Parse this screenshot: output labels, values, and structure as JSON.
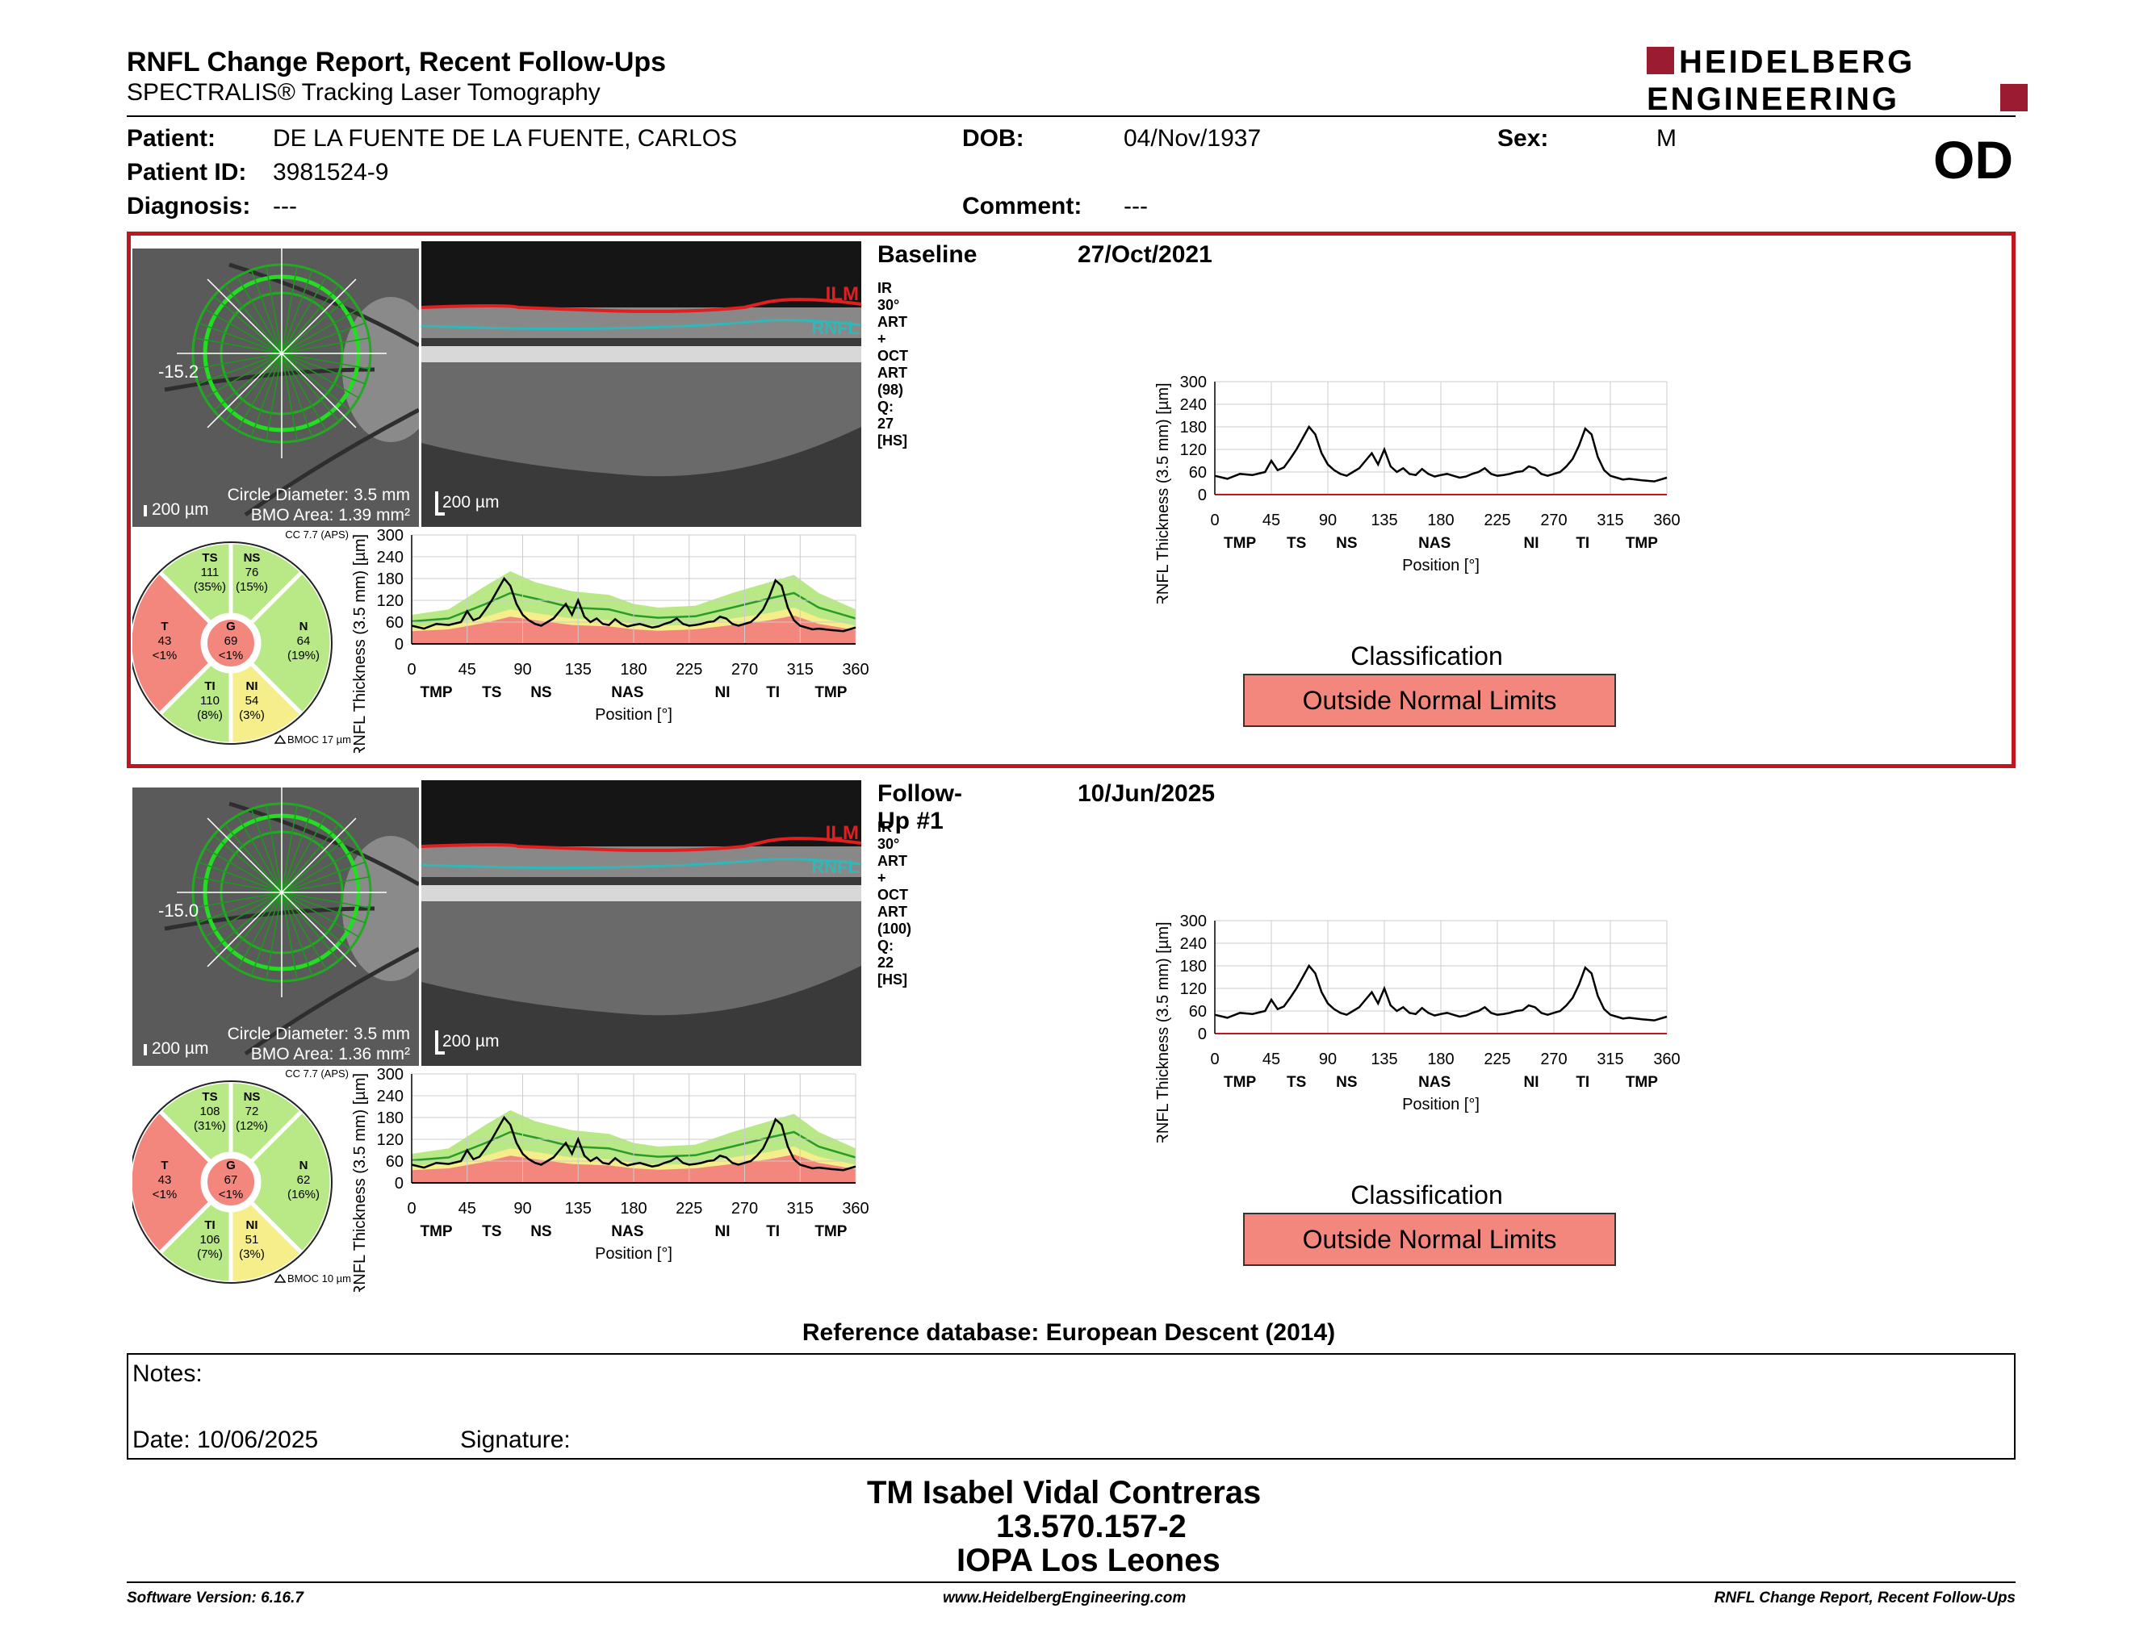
{
  "header": {
    "title": "RNFL Change Report, Recent Follow-Ups",
    "subtitle": "SPECTRALIS® Tracking Laser Tomography",
    "logo_line1": "HEIDELBERG",
    "logo_line2": "ENGINEERING",
    "eye": "OD"
  },
  "patient": {
    "patient_label": "Patient:",
    "patient_value": "DE LA FUENTE DE LA FUENTE, CARLOS",
    "dob_label": "DOB:",
    "dob_value": "04/Nov/1937",
    "sex_label": "Sex:",
    "sex_value": "M",
    "id_label": "Patient ID:",
    "id_value": "3981524-9",
    "diagnosis_label": "Diagnosis:",
    "diagnosis_value": "---",
    "comment_label": "Comment:",
    "comment_value": "---"
  },
  "exams": [
    {
      "label": "Baseline",
      "date": "27/Oct/2021",
      "scan_info": "IR 30° ART + OCT ART (98) Q: 27 [HS]",
      "fundus_angle": "-15.2",
      "fundus_scale": "200 µm",
      "circle_diameter": "Circle Diameter: 3.5 mm",
      "bmo_area": "BMO Area: 1.39 mm²",
      "oct_scale": "200 µm",
      "ilm": "ILM",
      "rnfl": "RNFL",
      "cc_label": "CC 7.7 (APS)",
      "bmoc": "BMOC 17 µm",
      "sectors": {
        "ts": {
          "name": "TS",
          "value": "111",
          "pct": "(35%)",
          "color": "#b8e986"
        },
        "ns": {
          "name": "NS",
          "value": "76",
          "pct": "(15%)",
          "color": "#b8e986"
        },
        "t": {
          "name": "T",
          "value": "43",
          "pct": "<1%",
          "color": "#f4877d"
        },
        "g": {
          "name": "G",
          "value": "69",
          "pct": "<1%",
          "color": "#f4877d"
        },
        "n": {
          "name": "N",
          "value": "64",
          "pct": "(19%)",
          "color": "#b8e986"
        },
        "ti": {
          "name": "TI",
          "value": "110",
          "pct": "(8%)",
          "color": "#b8e986"
        },
        "ni": {
          "name": "NI",
          "value": "54",
          "pct": "(3%)",
          "color": "#f5ee8a"
        }
      },
      "classification_label": "Classification",
      "classification": "Outside Normal Limits"
    },
    {
      "label": "Follow-Up #1",
      "date": "10/Jun/2025",
      "scan_info": "IR 30° ART + OCT ART (100) Q: 22 [HS]",
      "fundus_angle": "-15.0",
      "fundus_scale": "200 µm",
      "circle_diameter": "Circle Diameter: 3.5 mm",
      "bmo_area": "BMO Area: 1.36 mm²",
      "oct_scale": "200 µm",
      "ilm": "ILM",
      "rnfl": "RNFL",
      "cc_label": "CC 7.7 (APS)",
      "bmoc": "BMOC 10 µm",
      "sectors": {
        "ts": {
          "name": "TS",
          "value": "108",
          "pct": "(31%)",
          "color": "#b8e986"
        },
        "ns": {
          "name": "NS",
          "value": "72",
          "pct": "(12%)",
          "color": "#b8e986"
        },
        "t": {
          "name": "T",
          "value": "43",
          "pct": "<1%",
          "color": "#f4877d"
        },
        "g": {
          "name": "G",
          "value": "67",
          "pct": "<1%",
          "color": "#f4877d"
        },
        "n": {
          "name": "N",
          "value": "62",
          "pct": "(16%)",
          "color": "#b8e986"
        },
        "ti": {
          "name": "TI",
          "value": "106",
          "pct": "(7%)",
          "color": "#b8e986"
        },
        "ni": {
          "name": "NI",
          "value": "51",
          "pct": "(3%)",
          "color": "#f5ee8a"
        }
      },
      "classification_label": "Classification",
      "classification": "Outside Normal Limits"
    }
  ],
  "chart_data": [
    {
      "type": "line",
      "ylabel": "RNFL Thickness (3.5 mm) [µm]",
      "xlabel": "Position [°]",
      "xlim": [
        0,
        360
      ],
      "ylim": [
        0,
        300
      ],
      "xticks": [
        0,
        45,
        90,
        135,
        180,
        225,
        270,
        315,
        360
      ],
      "yticks": [
        0,
        60,
        120,
        180,
        240,
        300
      ],
      "sector_labels": [
        {
          "pos": 20,
          "t": "TMP"
        },
        {
          "pos": 65,
          "t": "TS"
        },
        {
          "pos": 105,
          "t": "NS"
        },
        {
          "pos": 175,
          "t": "NAS"
        },
        {
          "pos": 252,
          "t": "NI"
        },
        {
          "pos": 293,
          "t": "TI"
        },
        {
          "pos": 340,
          "t": "TMP"
        }
      ],
      "series": [
        {
          "x": [
            0,
            10,
            20,
            30,
            40,
            45,
            50,
            55,
            60,
            65,
            70,
            75,
            80,
            85,
            90,
            95,
            100,
            105,
            110,
            115,
            120,
            125,
            130,
            135,
            140,
            145,
            150,
            155,
            160,
            165,
            170,
            175,
            180,
            185,
            190,
            195,
            200,
            205,
            210,
            215,
            220,
            225,
            230,
            235,
            240,
            245,
            250,
            255,
            260,
            265,
            270,
            275,
            280,
            285,
            290,
            295,
            300,
            305,
            310,
            315,
            320,
            325,
            330,
            340,
            350,
            360
          ],
          "values": [
            50,
            42,
            55,
            52,
            60,
            90,
            65,
            72,
            95,
            120,
            150,
            180,
            160,
            110,
            80,
            65,
            55,
            50,
            60,
            70,
            90,
            110,
            80,
            120,
            75,
            60,
            70,
            55,
            52,
            68,
            55,
            48,
            52,
            55,
            50,
            45,
            48,
            55,
            60,
            70,
            55,
            50,
            52,
            55,
            60,
            62,
            75,
            70,
            55,
            50,
            55,
            60,
            75,
            95,
            130,
            175,
            160,
            100,
            65,
            50,
            45,
            40,
            42,
            38,
            35,
            45
          ]
        }
      ],
      "normal_green_upper": [
        [
          0,
          80
        ],
        [
          30,
          95
        ],
        [
          60,
          160
        ],
        [
          80,
          200
        ],
        [
          100,
          170
        ],
        [
          130,
          145
        ],
        [
          160,
          135
        ],
        [
          180,
          110
        ],
        [
          200,
          100
        ],
        [
          230,
          105
        ],
        [
          260,
          140
        ],
        [
          290,
          170
        ],
        [
          310,
          190
        ],
        [
          330,
          140
        ],
        [
          360,
          95
        ]
      ],
      "normal_yellow_upper": [
        [
          0,
          48
        ],
        [
          30,
          52
        ],
        [
          60,
          75
        ],
        [
          80,
          95
        ],
        [
          100,
          85
        ],
        [
          130,
          70
        ],
        [
          160,
          65
        ],
        [
          180,
          55
        ],
        [
          200,
          50
        ],
        [
          230,
          52
        ],
        [
          260,
          70
        ],
        [
          290,
          85
        ],
        [
          310,
          100
        ],
        [
          330,
          72
        ],
        [
          360,
          50
        ]
      ],
      "normal_red_upper": [
        [
          0,
          35
        ],
        [
          30,
          40
        ],
        [
          60,
          58
        ],
        [
          80,
          75
        ],
        [
          100,
          65
        ],
        [
          130,
          52
        ],
        [
          160,
          48
        ],
        [
          180,
          40
        ],
        [
          200,
          36
        ],
        [
          230,
          40
        ],
        [
          260,
          52
        ],
        [
          290,
          65
        ],
        [
          310,
          78
        ],
        [
          330,
          55
        ],
        [
          360,
          38
        ]
      ],
      "normal_mean": [
        [
          0,
          62
        ],
        [
          30,
          70
        ],
        [
          60,
          110
        ],
        [
          80,
          140
        ],
        [
          100,
          125
        ],
        [
          130,
          100
        ],
        [
          160,
          95
        ],
        [
          180,
          78
        ],
        [
          200,
          72
        ],
        [
          230,
          76
        ],
        [
          260,
          100
        ],
        [
          290,
          125
        ],
        [
          310,
          140
        ],
        [
          330,
          100
        ],
        [
          360,
          70
        ]
      ]
    }
  ],
  "reference_db": "Reference database: European Descent (2014)",
  "notes": {
    "notes_label": "Notes:",
    "date_label": "Date: 10/06/2025",
    "signature_label": "Signature:"
  },
  "signer": {
    "name": "TM Isabel Vidal Contreras",
    "id": "13.570.157-2",
    "org": "IOPA Los Leones"
  },
  "footer": {
    "version": "Software Version: 6.16.7",
    "url": "www.HeidelbergEngineering.com",
    "report": "RNFL Change Report, Recent Follow-Ups"
  },
  "colors": {
    "brand_red": "#c0161c",
    "outside_normal": "#f4877d",
    "within_normal": "#b8e986",
    "borderline": "#f5ee8a"
  }
}
